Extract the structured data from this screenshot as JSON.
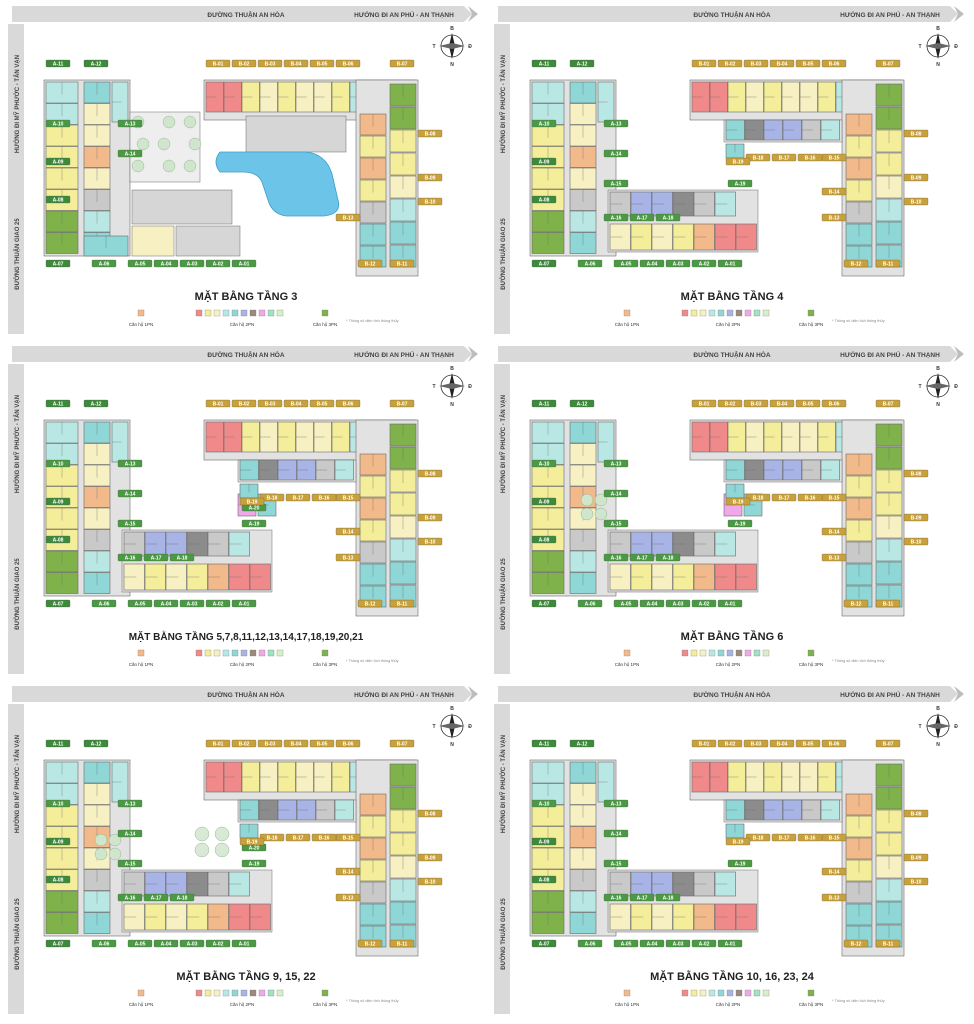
{
  "labels": {
    "top_street": "ĐƯỜNG THUẬN AN HÒA",
    "top_direction": "HƯỚNG ĐI AN PHÚ - AN THẠNH",
    "left_direction": "HƯỚNG ĐI MỸ PHƯỚC - TÂN VẠN",
    "left_street": "ĐƯỜNG THUẬN GIAO 25",
    "legend_1pn": "Căn hộ 1PN",
    "legend_2pn": "Căn hộ 2PN",
    "legend_3pn": "Căn hộ 3PN",
    "legend_note": "* Thông số diện tích thông thủy"
  },
  "colors": {
    "1pn": "#f2b98a",
    "3pn": "#7fb24a",
    "2pn": [
      "#f08a8a",
      "#f4ed9a",
      "#f6f0c2",
      "#b9e8e4",
      "#8fd6d6",
      "#a8b3e6",
      "#9b8a7a",
      "#f0a8e8",
      "#9fe3c0",
      "#d8f0c8"
    ]
  },
  "compass": {
    "north": "B",
    "south": "N",
    "east": "Đ",
    "west": "T"
  },
  "a_units": [
    "A-11",
    "A-12",
    "A-10",
    "A-09",
    "A-08",
    "A-07",
    "A-06",
    "A-05",
    "A-04",
    "A-03",
    "A-02",
    "A-01",
    "A-13",
    "A-14",
    "A-15",
    "A-16",
    "A-17",
    "A-18",
    "A-19",
    "A-20"
  ],
  "b_units": [
    "B-01",
    "B-02",
    "B-03",
    "B-04",
    "B-05",
    "B-06",
    "B-07",
    "B-08",
    "B-09",
    "B-10",
    "B-11",
    "B-12",
    "B-13",
    "B-14",
    "B-15",
    "B-16",
    "B-17",
    "B-18",
    "B-19",
    "B-20"
  ],
  "panels": [
    {
      "title": "MẶT BẰNG TẦNG 3"
    },
    {
      "title": "MẶT BẰNG TẦNG 4"
    },
    {
      "title": "MẶT BẰNG TẦNG 5,7,8,11,12,13,14,17,18,19,20,21"
    },
    {
      "title": "MẶT BẰNG TẦNG 6"
    },
    {
      "title": "MẶT BẰNG TẦNG 9, 15, 22"
    },
    {
      "title": "MẶT BẰNG TẦNG 10, 16, 23, 24"
    }
  ]
}
